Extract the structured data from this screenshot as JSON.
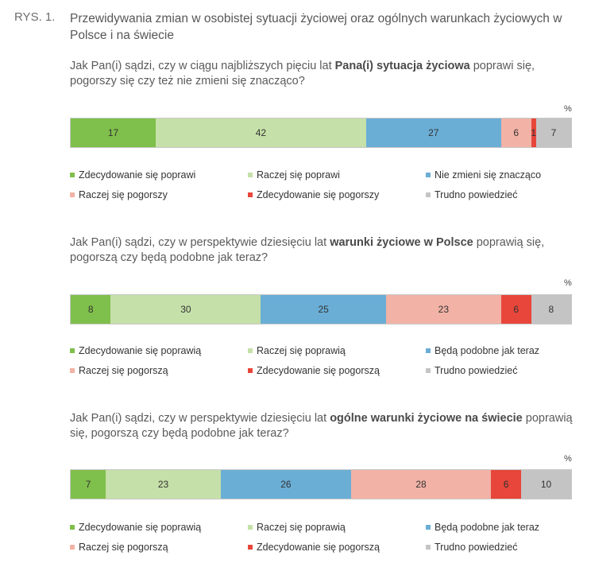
{
  "figure_label": "RYS. 1.",
  "title": "Przewidywania zmian w osobistej sytuacji życiowej oraz ogólnych warunkach życiowych w Polsce i na świecie",
  "colors": {
    "strong_better": "#7fbf4b",
    "better": "#c5e0a8",
    "same": "#6aaed6",
    "worse": "#f2b2a6",
    "strong_worse": "#e8463a",
    "dont_know": "#c4c4c4"
  },
  "chart_data": [
    {
      "type": "bar",
      "orientation": "horizontal-stacked",
      "unit_label": "%",
      "question_pre": "Jak Pan(i) sądzi, czy w ciągu najbliższych pięciu lat ",
      "question_bold": "Pana(i) sytuacja życiowa",
      "question_post": " poprawi się, pogorszy się czy też nie zmieni się znacząco?",
      "series": [
        {
          "name": "Zdecydowanie się poprawi",
          "value": 17,
          "color_key": "strong_better"
        },
        {
          "name": "Raczej się poprawi",
          "value": 42,
          "color_key": "better"
        },
        {
          "name": "Nie zmieni się znacząco",
          "value": 27,
          "color_key": "same"
        },
        {
          "name": "Raczej się pogorszy",
          "value": 6,
          "color_key": "worse"
        },
        {
          "name": "Zdecydowanie się pogorszy",
          "value": 1,
          "color_key": "strong_worse"
        },
        {
          "name": "Trudno powiedzieć",
          "value": 7,
          "color_key": "dont_know"
        }
      ]
    },
    {
      "type": "bar",
      "orientation": "horizontal-stacked",
      "unit_label": "%",
      "question_pre": "Jak Pan(i) sądzi, czy w perspektywie dziesięciu lat ",
      "question_bold": "warunki życiowe w Polsce",
      "question_post": " poprawią się, pogorszą czy będą podobne jak teraz?",
      "series": [
        {
          "name": "Zdecydowanie się poprawią",
          "value": 8,
          "color_key": "strong_better"
        },
        {
          "name": "Raczej się poprawią",
          "value": 30,
          "color_key": "better"
        },
        {
          "name": "Będą podobne jak teraz",
          "value": 25,
          "color_key": "same"
        },
        {
          "name": "Raczej się pogorszą",
          "value": 23,
          "color_key": "worse"
        },
        {
          "name": "Zdecydowanie się pogorszą",
          "value": 6,
          "color_key": "strong_worse"
        },
        {
          "name": "Trudno powiedzieć",
          "value": 8,
          "color_key": "dont_know"
        }
      ]
    },
    {
      "type": "bar",
      "orientation": "horizontal-stacked",
      "unit_label": "%",
      "question_pre": "Jak Pan(i) sądzi, czy w perspektywie dziesięciu lat ",
      "question_bold": "ogólne warunki życiowe na świecie",
      "question_post": " poprawią się, pogorszą czy będą podobne jak teraz?",
      "series": [
        {
          "name": "Zdecydowanie się poprawią",
          "value": 7,
          "color_key": "strong_better"
        },
        {
          "name": "Raczej się poprawią",
          "value": 23,
          "color_key": "better"
        },
        {
          "name": "Będą podobne jak teraz",
          "value": 26,
          "color_key": "same"
        },
        {
          "name": "Raczej się pogorszą",
          "value": 28,
          "color_key": "worse"
        },
        {
          "name": "Zdecydowanie się pogorszą",
          "value": 6,
          "color_key": "strong_worse"
        },
        {
          "name": "Trudno powiedzieć",
          "value": 10,
          "color_key": "dont_know"
        }
      ]
    }
  ]
}
